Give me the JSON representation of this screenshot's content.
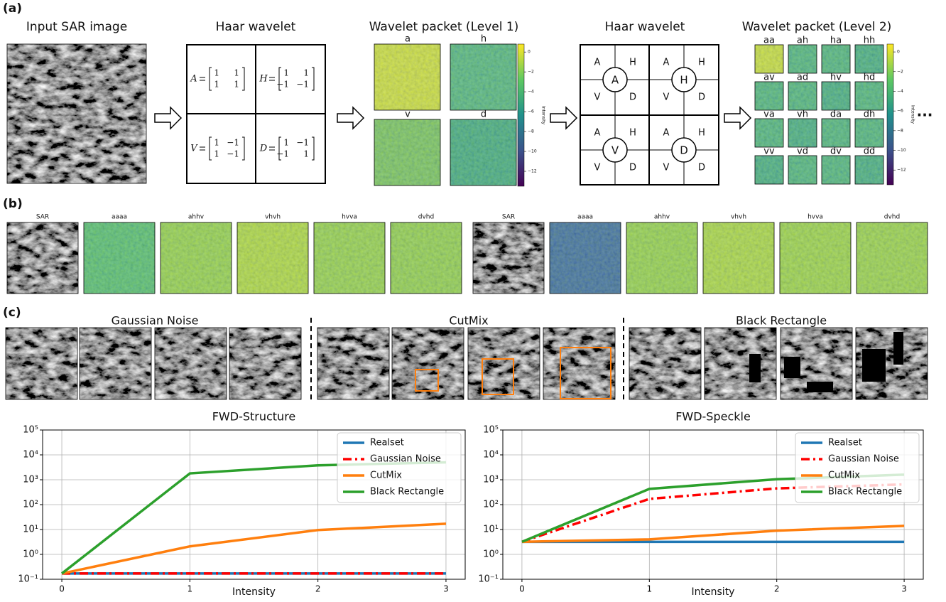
{
  "panels": {
    "a": {
      "label": "(a)",
      "titles": [
        "Input SAR image",
        "Haar wavelet",
        "Wavelet packet (Level 1)",
        "Haar wavelet",
        "Wavelet packet (Level 2)"
      ],
      "haar_matrices": [
        {
          "name": "A",
          "rows": [
            [
              "1",
              "1"
            ],
            [
              "1",
              "1"
            ]
          ]
        },
        {
          "name": "H",
          "rows": [
            [
              "1",
              "1"
            ],
            [
              "−1",
              "−1"
            ]
          ]
        },
        {
          "name": "V",
          "rows": [
            [
              "1",
              "−1"
            ],
            [
              "1",
              "−1"
            ]
          ]
        },
        {
          "name": "D",
          "rows": [
            [
              "1",
              "−1"
            ],
            [
              "−1",
              "1"
            ]
          ]
        }
      ],
      "level1": [
        "a",
        "h",
        "v",
        "d"
      ],
      "tree": [
        "A",
        "H",
        "V",
        "D"
      ],
      "level2": [
        "aa",
        "ah",
        "ha",
        "hh",
        "av",
        "ad",
        "hv",
        "hd",
        "va",
        "vh",
        "da",
        "dh",
        "vv",
        "vd",
        "dv",
        "dd"
      ],
      "colorbar": {
        "label": "Intensity",
        "range": [
          -13.5,
          0.8
        ],
        "ticks": [
          {
            "value": 0,
            "label": "0"
          },
          {
            "value": -2,
            "label": "−2"
          },
          {
            "value": -4,
            "label": "−4"
          },
          {
            "value": -6,
            "label": "−6"
          },
          {
            "value": -8,
            "label": "−8"
          },
          {
            "value": -10,
            "label": "−10"
          },
          {
            "value": -12,
            "label": "−12"
          }
        ]
      },
      "ellipsis": "..."
    },
    "b": {
      "label": "(b)",
      "images": [
        "SAR",
        "aaaa",
        "ahhv",
        "vhvh",
        "hvva",
        "dvhd",
        "SAR",
        "aaaa",
        "ahhv",
        "vhvh",
        "hvva",
        "dvhd"
      ]
    },
    "c": {
      "label": "(c)",
      "groups": [
        "Gaussian Noise",
        "CutMix",
        "Black Rectangle"
      ]
    }
  },
  "chart_data": [
    {
      "type": "line",
      "title": "FWD-Structure",
      "xlabel": "Intensity",
      "x": [
        0,
        1,
        2,
        3
      ],
      "series": [
        {
          "name": "Realset",
          "color": "#1f77b4",
          "linestyle": "solid",
          "values": [
            0.17,
            0.17,
            0.17,
            0.17
          ]
        },
        {
          "name": "Gaussian Noise",
          "color": "#ff0000",
          "linestyle": "dashdot",
          "values": [
            0.17,
            0.17,
            0.17,
            0.17
          ]
        },
        {
          "name": "CutMix",
          "color": "#ff7f0e",
          "linestyle": "solid",
          "values": [
            0.17,
            2.1,
            9.5,
            17
          ]
        },
        {
          "name": "Black Rectangle",
          "color": "#2ca02c",
          "linestyle": "solid",
          "values": [
            0.17,
            1800,
            3800,
            5000
          ]
        }
      ],
      "xlim": [
        -0.15,
        3.15
      ],
      "xticks": [
        0,
        1,
        2,
        3
      ],
      "ylim": [
        0.1,
        100000
      ],
      "log_y": true,
      "yticks": [
        {
          "value": 0.1,
          "label": "10⁻¹"
        },
        {
          "value": 1,
          "label": "10⁰"
        },
        {
          "value": 10,
          "label": "10¹"
        },
        {
          "value": 100,
          "label": "10²"
        },
        {
          "value": 1000,
          "label": "10³"
        },
        {
          "value": 10000,
          "label": "10⁴"
        },
        {
          "value": 100000,
          "label": "10⁵"
        }
      ],
      "grid": true,
      "legend": "upper right"
    },
    {
      "type": "line",
      "title": "FWD-Speckle",
      "xlabel": "Intensity",
      "x": [
        0,
        1,
        2,
        3
      ],
      "series": [
        {
          "name": "Realset",
          "color": "#1f77b4",
          "linestyle": "solid",
          "values": [
            3.2,
            3.2,
            3.2,
            3.2
          ]
        },
        {
          "name": "Gaussian Noise",
          "color": "#ff0000",
          "linestyle": "dashdot",
          "values": [
            3.2,
            170,
            450,
            650
          ]
        },
        {
          "name": "CutMix",
          "color": "#ff7f0e",
          "linestyle": "solid",
          "values": [
            3.2,
            4.0,
            9,
            14
          ]
        },
        {
          "name": "Black Rectangle",
          "color": "#2ca02c",
          "linestyle": "solid",
          "values": [
            3.2,
            430,
            1050,
            1600
          ]
        }
      ],
      "xlim": [
        -0.15,
        3.15
      ],
      "xticks": [
        0,
        1,
        2,
        3
      ],
      "ylim": [
        0.1,
        100000
      ],
      "log_y": true,
      "yticks": [
        {
          "value": 0.1,
          "label": "10⁻¹"
        },
        {
          "value": 1,
          "label": "10⁰"
        },
        {
          "value": 10,
          "label": "10¹"
        },
        {
          "value": 100,
          "label": "10²"
        },
        {
          "value": 1000,
          "label": "10³"
        },
        {
          "value": 10000,
          "label": "10⁴"
        },
        {
          "value": 100000,
          "label": "10⁵"
        }
      ],
      "grid": true,
      "legend": "upper right"
    }
  ]
}
